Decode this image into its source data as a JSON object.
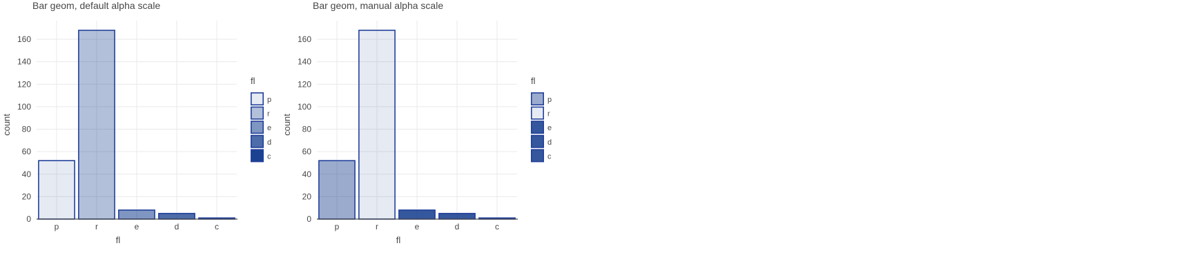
{
  "chart_data": [
    {
      "type": "bar",
      "title": "Bar geom, default alpha scale",
      "xlabel": "fl",
      "ylabel": "count",
      "categories": [
        "p",
        "r",
        "e",
        "d",
        "c"
      ],
      "values": [
        52,
        168,
        8,
        5,
        1
      ],
      "ylim": [
        0,
        168
      ],
      "yticks": [
        0,
        20,
        40,
        60,
        80,
        100,
        120,
        140,
        160
      ],
      "alpha": {
        "p": 0.1,
        "r": 0.3,
        "e": 0.5,
        "d": 0.7,
        "c": 0.9
      },
      "fill_color": "#022d85",
      "border_color": "#22409a",
      "grid": true,
      "legend": {
        "title": "fl",
        "position": "right",
        "entries": [
          "p",
          "r",
          "e",
          "d",
          "c"
        ]
      }
    },
    {
      "type": "bar",
      "title": "Bar geom, manual alpha scale",
      "xlabel": "fl",
      "ylabel": "count",
      "categories": [
        "p",
        "r",
        "e",
        "d",
        "c"
      ],
      "values": [
        52,
        168,
        8,
        5,
        1
      ],
      "ylim": [
        0,
        168
      ],
      "yticks": [
        0,
        20,
        40,
        60,
        80,
        100,
        120,
        140,
        160
      ],
      "alpha": {
        "p": 0.4,
        "r": 0.1,
        "e": 0.8,
        "d": 0.8,
        "c": 0.8
      },
      "fill_color": "#022d85",
      "border_color": "#22409a",
      "grid": true,
      "legend": {
        "title": "fl",
        "position": "right",
        "entries": [
          "p",
          "r",
          "e",
          "d",
          "c"
        ]
      }
    }
  ]
}
